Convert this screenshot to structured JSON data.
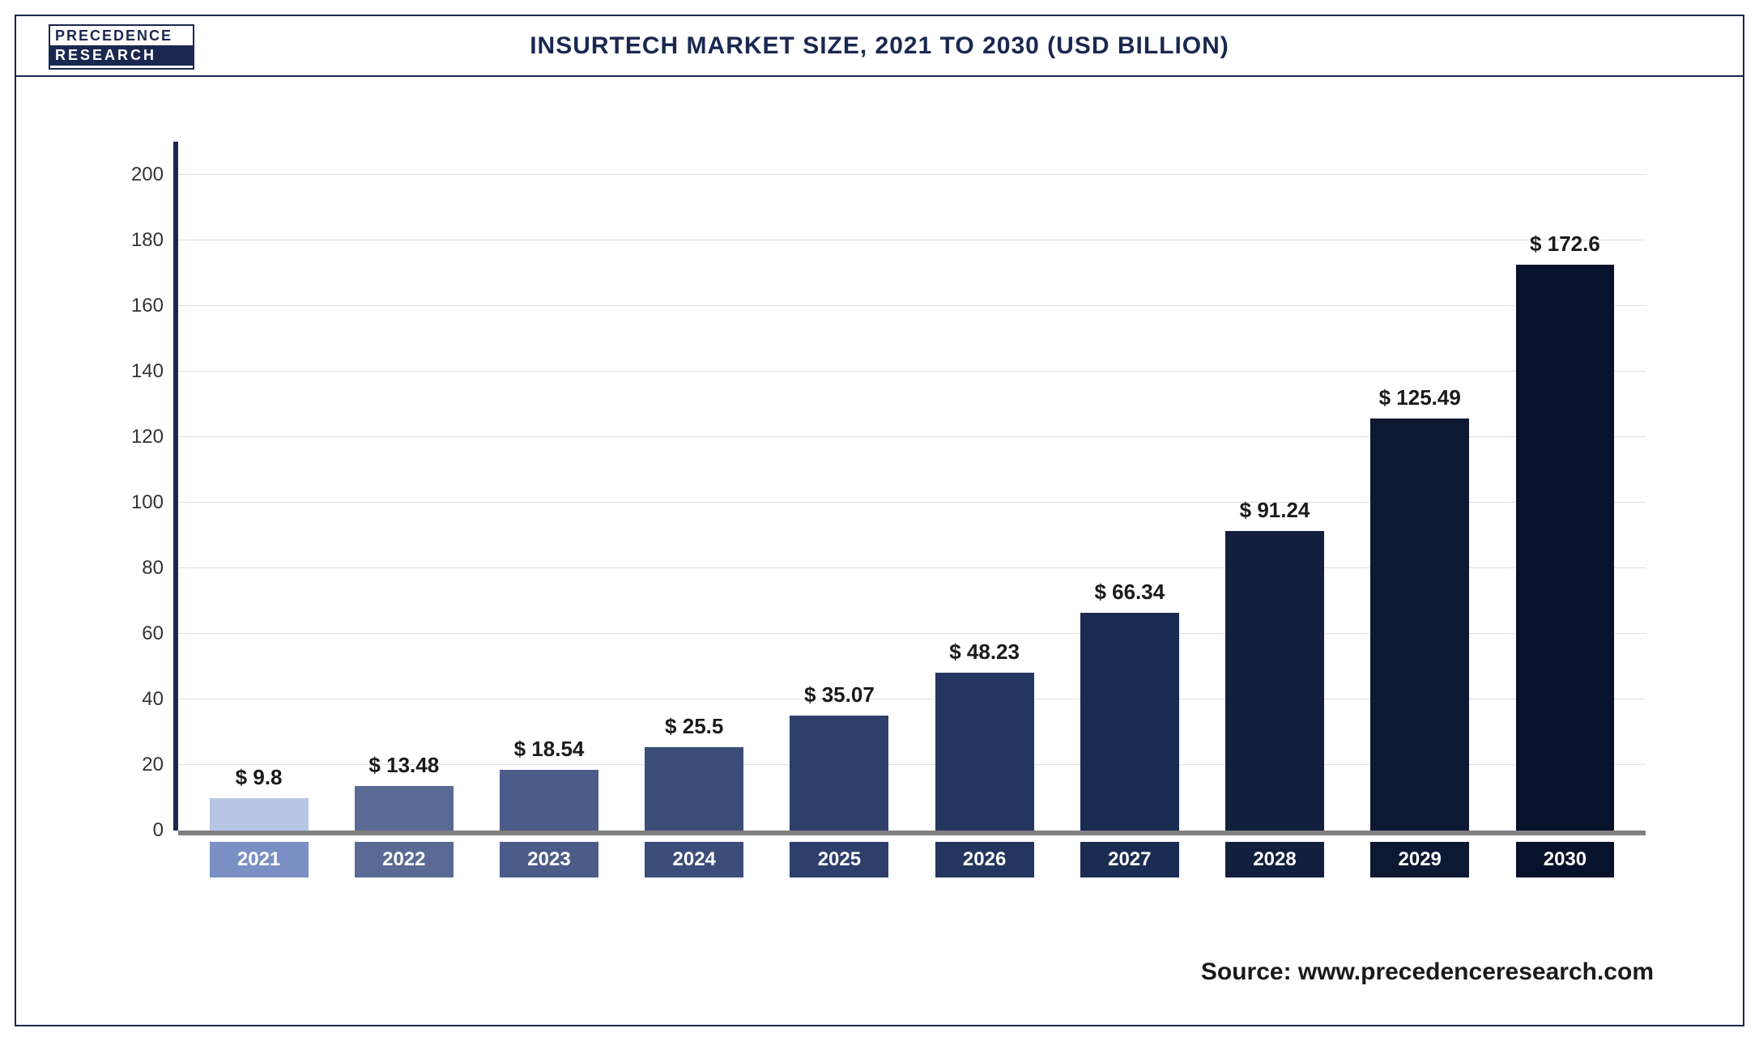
{
  "logo": {
    "line1": "PRECEDENCE",
    "line2": "RESEARCH"
  },
  "chart": {
    "type": "bar",
    "title": "INSURTECH MARKET SIZE, 2021 TO 2030 (USD BILLION)",
    "categories": [
      "2021",
      "2022",
      "2023",
      "2024",
      "2025",
      "2026",
      "2027",
      "2028",
      "2029",
      "2030"
    ],
    "values": [
      9.8,
      13.48,
      18.54,
      25.5,
      35.07,
      48.23,
      66.34,
      91.24,
      125.49,
      172.6
    ],
    "value_labels": [
      "$ 9.8",
      "$ 13.48",
      "$ 18.54",
      "$ 25.5",
      "$ 35.07",
      "$ 48.23",
      "$ 66.34",
      "$ 91.24",
      "$ 125.49",
      "$ 172.6"
    ],
    "bar_colors": [
      "#b8c6e6",
      "#5a6a94",
      "#4c5c88",
      "#3c4d7a",
      "#2e3f6c",
      "#24365f",
      "#1a2c52",
      "#121f3e",
      "#0d1833",
      "#08122a"
    ],
    "xlabel_box_colors": [
      "#7a8fc4",
      "#5a6a94",
      "#4c5c88",
      "#3c4d7a",
      "#2e3f6c",
      "#24365f",
      "#1a2c52",
      "#121f3e",
      "#0d1833",
      "#08122a"
    ],
    "ylim": [
      0,
      210
    ],
    "ytick_step": 20,
    "yticks": [
      0,
      20,
      40,
      60,
      80,
      100,
      120,
      140,
      160,
      180,
      200
    ],
    "ytick_labels": [
      "0",
      "20",
      "40",
      "60",
      "80",
      "100",
      "120",
      "140",
      "160",
      "180",
      "200"
    ],
    "grid_color": "#e0e0e0",
    "background_color": "#ffffff",
    "title_fontsize": 30,
    "label_fontsize": 24,
    "value_fontsize": 26,
    "bar_width": 0.68
  },
  "source": "Source: www.precedenceresearch.com"
}
